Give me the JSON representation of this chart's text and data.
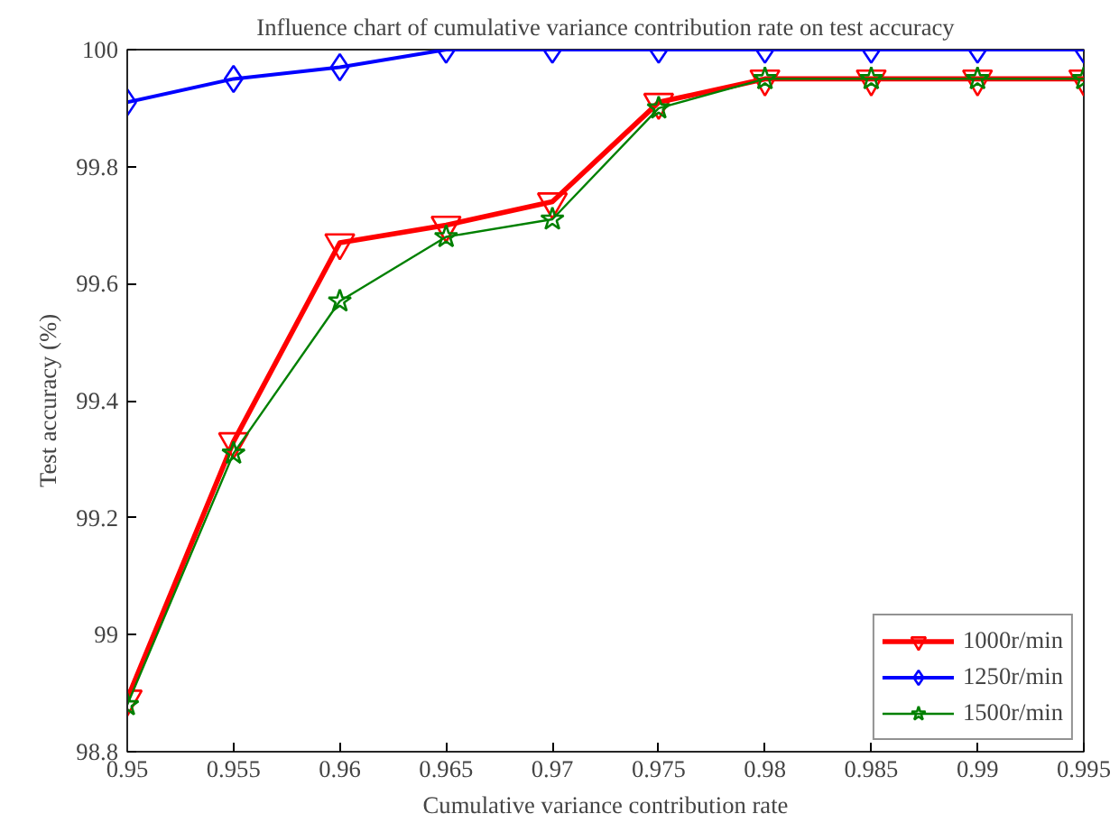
{
  "chart_data": {
    "type": "line",
    "title": "Influence chart of cumulative variance contribution rate on test accuracy",
    "xlabel": "Cumulative variance contribution rate",
    "ylabel": "Test accuracy (%)",
    "x": [
      0.95,
      0.955,
      0.96,
      0.965,
      0.97,
      0.975,
      0.98,
      0.985,
      0.99,
      0.995
    ],
    "series": [
      {
        "name": "1000r/min",
        "color": "#ff0000",
        "marker": "triangle",
        "values": [
          98.89,
          99.33,
          99.67,
          99.7,
          99.74,
          99.91,
          99.95,
          99.95,
          99.95,
          99.95
        ]
      },
      {
        "name": "1250r/min",
        "color": "#0000ff",
        "marker": "diamond",
        "values": [
          99.91,
          99.95,
          99.97,
          100,
          100,
          100,
          100,
          100,
          100,
          100
        ]
      },
      {
        "name": "1500r/min",
        "color": "#008000",
        "marker": "star",
        "values": [
          98.88,
          99.31,
          99.57,
          99.68,
          99.71,
          99.9,
          99.95,
          99.95,
          99.95,
          99.95
        ]
      }
    ],
    "xlim": [
      0.95,
      0.995
    ],
    "xticks": [
      0.95,
      0.955,
      0.96,
      0.965,
      0.97,
      0.975,
      0.98,
      0.985,
      0.99,
      0.995
    ],
    "ylim": [
      98.8,
      100
    ],
    "yticks": [
      98.8,
      99,
      99.2,
      99.4,
      99.6,
      99.8,
      100
    ],
    "grid": false,
    "legend": "bottom right",
    "line_style": "solid"
  }
}
